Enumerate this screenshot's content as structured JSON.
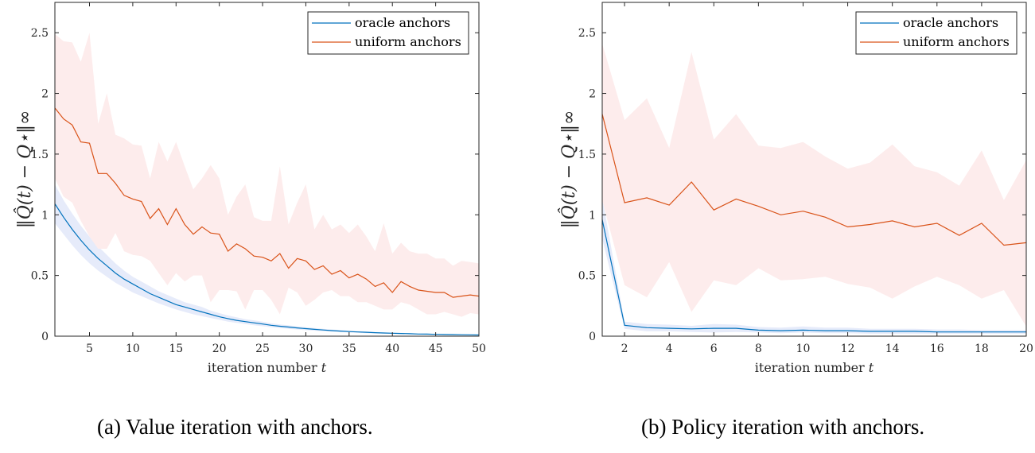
{
  "chart_data": [
    {
      "type": "line",
      "title": "",
      "caption": "(a) Value iteration with anchors.",
      "xlabel": "iteration number t",
      "ylabel": "||Q̂(t) − Q*||∞",
      "xlim": [
        1,
        50
      ],
      "ylim": [
        0,
        2.75
      ],
      "xticks": [
        5,
        10,
        15,
        20,
        25,
        30,
        35,
        40,
        45,
        50
      ],
      "yticks": [
        0,
        0.5,
        1,
        1.5,
        2,
        2.5
      ],
      "ytick_labels": [
        "0",
        "0.5",
        "1",
        "1.5",
        "2",
        "2.5"
      ],
      "grid": false,
      "legend_position": "upper right",
      "x": [
        1,
        2,
        3,
        4,
        5,
        6,
        7,
        8,
        9,
        10,
        11,
        12,
        13,
        14,
        15,
        16,
        17,
        18,
        19,
        20,
        21,
        22,
        23,
        24,
        25,
        26,
        27,
        28,
        29,
        30,
        31,
        32,
        33,
        34,
        35,
        36,
        37,
        38,
        39,
        40,
        41,
        42,
        43,
        44,
        45,
        46,
        47,
        48,
        49,
        50
      ],
      "series": [
        {
          "name": "oracle anchors",
          "color": "#0072BD",
          "band_color": "#e6ebfa",
          "values": [
            1.09,
            0.98,
            0.88,
            0.79,
            0.71,
            0.64,
            0.58,
            0.52,
            0.47,
            0.43,
            0.39,
            0.35,
            0.32,
            0.29,
            0.26,
            0.24,
            0.22,
            0.2,
            0.18,
            0.16,
            0.145,
            0.13,
            0.12,
            0.11,
            0.1,
            0.09,
            0.082,
            0.075,
            0.068,
            0.062,
            0.056,
            0.051,
            0.046,
            0.042,
            0.038,
            0.035,
            0.032,
            0.029,
            0.026,
            0.024,
            0.022,
            0.02,
            0.018,
            0.017,
            0.015,
            0.014,
            0.013,
            0.012,
            0.011,
            0.01
          ],
          "lower": [
            0.93,
            0.84,
            0.75,
            0.67,
            0.6,
            0.54,
            0.49,
            0.44,
            0.4,
            0.36,
            0.33,
            0.3,
            0.27,
            0.245,
            0.22,
            0.2,
            0.18,
            0.165,
            0.15,
            0.135,
            0.12,
            0.11,
            0.1,
            0.09,
            0.082,
            0.074,
            0.067,
            0.061,
            0.055,
            0.05,
            0.045,
            0.041,
            0.037,
            0.034,
            0.031,
            0.028,
            0.025,
            0.023,
            0.021,
            0.019,
            0.017,
            0.015,
            0.014,
            0.013,
            0.012,
            0.011,
            0.01,
            0.009,
            0.008,
            0.007
          ],
          "upper": [
            1.25,
            1.12,
            1.01,
            0.91,
            0.82,
            0.74,
            0.67,
            0.6,
            0.54,
            0.49,
            0.45,
            0.41,
            0.37,
            0.34,
            0.31,
            0.28,
            0.26,
            0.24,
            0.21,
            0.19,
            0.17,
            0.155,
            0.14,
            0.13,
            0.12,
            0.106,
            0.097,
            0.089,
            0.081,
            0.074,
            0.067,
            0.061,
            0.055,
            0.05,
            0.045,
            0.042,
            0.039,
            0.035,
            0.031,
            0.029,
            0.027,
            0.025,
            0.022,
            0.021,
            0.018,
            0.017,
            0.016,
            0.015,
            0.014,
            0.013
          ]
        },
        {
          "name": "uniform anchors",
          "color": "#D95319",
          "band_color": "#fdecec",
          "values": [
            1.88,
            1.79,
            1.74,
            1.6,
            1.59,
            1.34,
            1.34,
            1.26,
            1.16,
            1.13,
            1.11,
            0.97,
            1.05,
            0.92,
            1.05,
            0.92,
            0.84,
            0.9,
            0.85,
            0.84,
            0.7,
            0.76,
            0.72,
            0.66,
            0.65,
            0.62,
            0.68,
            0.56,
            0.64,
            0.62,
            0.55,
            0.58,
            0.51,
            0.54,
            0.48,
            0.51,
            0.47,
            0.41,
            0.44,
            0.36,
            0.45,
            0.41,
            0.38,
            0.37,
            0.36,
            0.36,
            0.32,
            0.33,
            0.34,
            0.33
          ],
          "lower": [
            1.3,
            1.15,
            1.1,
            0.95,
            0.82,
            0.72,
            0.72,
            0.85,
            0.7,
            0.67,
            0.66,
            0.62,
            0.52,
            0.42,
            0.52,
            0.45,
            0.5,
            0.5,
            0.28,
            0.38,
            0.38,
            0.37,
            0.22,
            0.38,
            0.38,
            0.3,
            0.18,
            0.4,
            0.36,
            0.25,
            0.3,
            0.36,
            0.38,
            0.33,
            0.33,
            0.28,
            0.28,
            0.25,
            0.22,
            0.22,
            0.28,
            0.26,
            0.22,
            0.18,
            0.18,
            0.2,
            0.18,
            0.16,
            0.19,
            0.18
          ],
          "upper": [
            2.49,
            2.43,
            2.42,
            2.26,
            2.5,
            1.75,
            2.0,
            1.66,
            1.63,
            1.58,
            1.57,
            1.3,
            1.6,
            1.44,
            1.6,
            1.4,
            1.21,
            1.3,
            1.41,
            1.3,
            1.0,
            1.15,
            1.25,
            0.98,
            0.95,
            0.95,
            1.4,
            0.92,
            1.1,
            1.25,
            0.88,
            1.0,
            0.88,
            0.92,
            0.85,
            0.92,
            0.82,
            0.7,
            0.93,
            0.68,
            0.77,
            0.7,
            0.68,
            0.68,
            0.64,
            0.64,
            0.58,
            0.62,
            0.61,
            0.6
          ]
        }
      ]
    },
    {
      "type": "line",
      "title": "",
      "caption": "(b) Policy iteration with anchors.",
      "xlabel": "iteration number t",
      "ylabel": "||Q̂(t) − Q*||∞",
      "xlim": [
        1,
        20
      ],
      "ylim": [
        0,
        2.75
      ],
      "xticks": [
        2,
        4,
        6,
        8,
        10,
        12,
        14,
        16,
        18,
        20
      ],
      "yticks": [
        0,
        0.5,
        1,
        1.5,
        2,
        2.5
      ],
      "ytick_labels": [
        "0",
        "0.5",
        "1",
        "1.5",
        "2",
        "2.5"
      ],
      "grid": false,
      "legend_position": "upper right",
      "x": [
        1,
        2,
        3,
        4,
        5,
        6,
        7,
        8,
        9,
        10,
        11,
        12,
        13,
        14,
        15,
        16,
        17,
        18,
        19,
        20
      ],
      "series": [
        {
          "name": "oracle anchors",
          "color": "#0072BD",
          "band_color": "#e6ebfa",
          "values": [
            0.96,
            0.09,
            0.07,
            0.065,
            0.06,
            0.065,
            0.065,
            0.05,
            0.045,
            0.05,
            0.045,
            0.045,
            0.04,
            0.04,
            0.04,
            0.035,
            0.035,
            0.035,
            0.035,
            0.035
          ],
          "lower": [
            0.8,
            0.06,
            0.04,
            0.04,
            0.035,
            0.03,
            0.035,
            0.03,
            0.025,
            0.03,
            0.025,
            0.025,
            0.02,
            0.02,
            0.02,
            0.02,
            0.02,
            0.02,
            0.02,
            0.02
          ],
          "upper": [
            1.14,
            0.12,
            0.1,
            0.095,
            0.085,
            0.1,
            0.095,
            0.075,
            0.07,
            0.08,
            0.07,
            0.07,
            0.06,
            0.06,
            0.06,
            0.055,
            0.055,
            0.05,
            0.05,
            0.05
          ]
        },
        {
          "name": "uniform anchors",
          "color": "#D95319",
          "band_color": "#fdecec",
          "values": [
            1.83,
            1.1,
            1.14,
            1.08,
            1.27,
            1.04,
            1.13,
            1.07,
            1.0,
            1.03,
            0.98,
            0.9,
            0.92,
            0.95,
            0.9,
            0.93,
            0.83,
            0.93,
            0.75,
            0.77
          ],
          "lower": [
            1.12,
            0.42,
            0.32,
            0.61,
            0.2,
            0.46,
            0.42,
            0.56,
            0.46,
            0.47,
            0.49,
            0.43,
            0.4,
            0.31,
            0.41,
            0.49,
            0.42,
            0.31,
            0.38,
            0.08
          ],
          "upper": [
            2.41,
            1.78,
            1.96,
            1.55,
            2.34,
            1.62,
            1.83,
            1.57,
            1.55,
            1.6,
            1.48,
            1.38,
            1.43,
            1.58,
            1.4,
            1.35,
            1.24,
            1.53,
            1.12,
            1.45
          ]
        }
      ]
    }
  ],
  "legend": {
    "labels": [
      "oracle anchors",
      "uniform anchors"
    ]
  },
  "captions": {
    "a": "(a) Value iteration with anchors.",
    "b": "(b) Policy iteration with anchors."
  },
  "axes": {
    "xlabel_text": "iteration number ",
    "xlabel_var": "t",
    "ylabel_text": "‖Q̂(t) − Q⋆‖∞"
  }
}
